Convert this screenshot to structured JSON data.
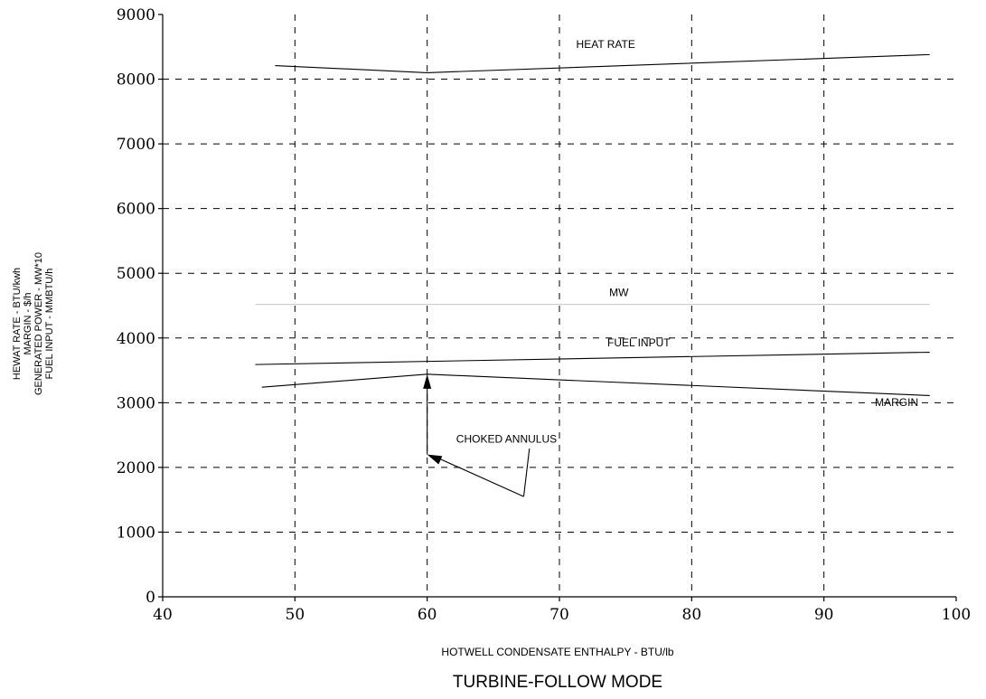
{
  "chart_data": {
    "type": "line",
    "title": "TURBINE-FOLLOW MODE",
    "xlabel": "HOTWELL CONDENSATE ENTHALPY - BTU/lb",
    "ylabel_lines": [
      "HEWAT RATE - BTU/kwh",
      "MARGIN - $/h",
      "GENERATED POWER - MW*10",
      "FUEL INPUT - MMBTU/h"
    ],
    "xlim": [
      40,
      100
    ],
    "ylim": [
      0,
      9000
    ],
    "x_ticks": [
      40,
      50,
      60,
      70,
      80,
      90,
      100
    ],
    "y_ticks": [
      0,
      1000,
      2000,
      3000,
      4000,
      5000,
      6000,
      7000,
      8000,
      9000
    ],
    "grid": true,
    "series": [
      {
        "name": "HEAT RATE",
        "color": "#000000",
        "x": [
          48.5,
          60,
          98
        ],
        "y": [
          8210,
          8100,
          8380
        ]
      },
      {
        "name": "MW",
        "color": "#cccccc",
        "x": [
          47,
          98
        ],
        "y": [
          4520,
          4520
        ]
      },
      {
        "name": "FUEL INPUT",
        "color": "#000000",
        "x": [
          47,
          98
        ],
        "y": [
          3590,
          3780
        ]
      },
      {
        "name": "MARGIN",
        "color": "#000000",
        "x": [
          47.5,
          60,
          98
        ],
        "y": [
          3240,
          3440,
          3110
        ]
      }
    ],
    "annotations": [
      {
        "text": "HEAT RATE",
        "x": 73.5,
        "y": 8480
      },
      {
        "text": "MW",
        "x": 74.5,
        "y": 4650
      },
      {
        "text": "FUEL INPUT",
        "x": 76,
        "y": 3870
      },
      {
        "text": "MARGIN",
        "x": 95.5,
        "y": 2950
      },
      {
        "text": "CHOKED ANNULUS",
        "x": 66,
        "y": 2380
      }
    ]
  }
}
